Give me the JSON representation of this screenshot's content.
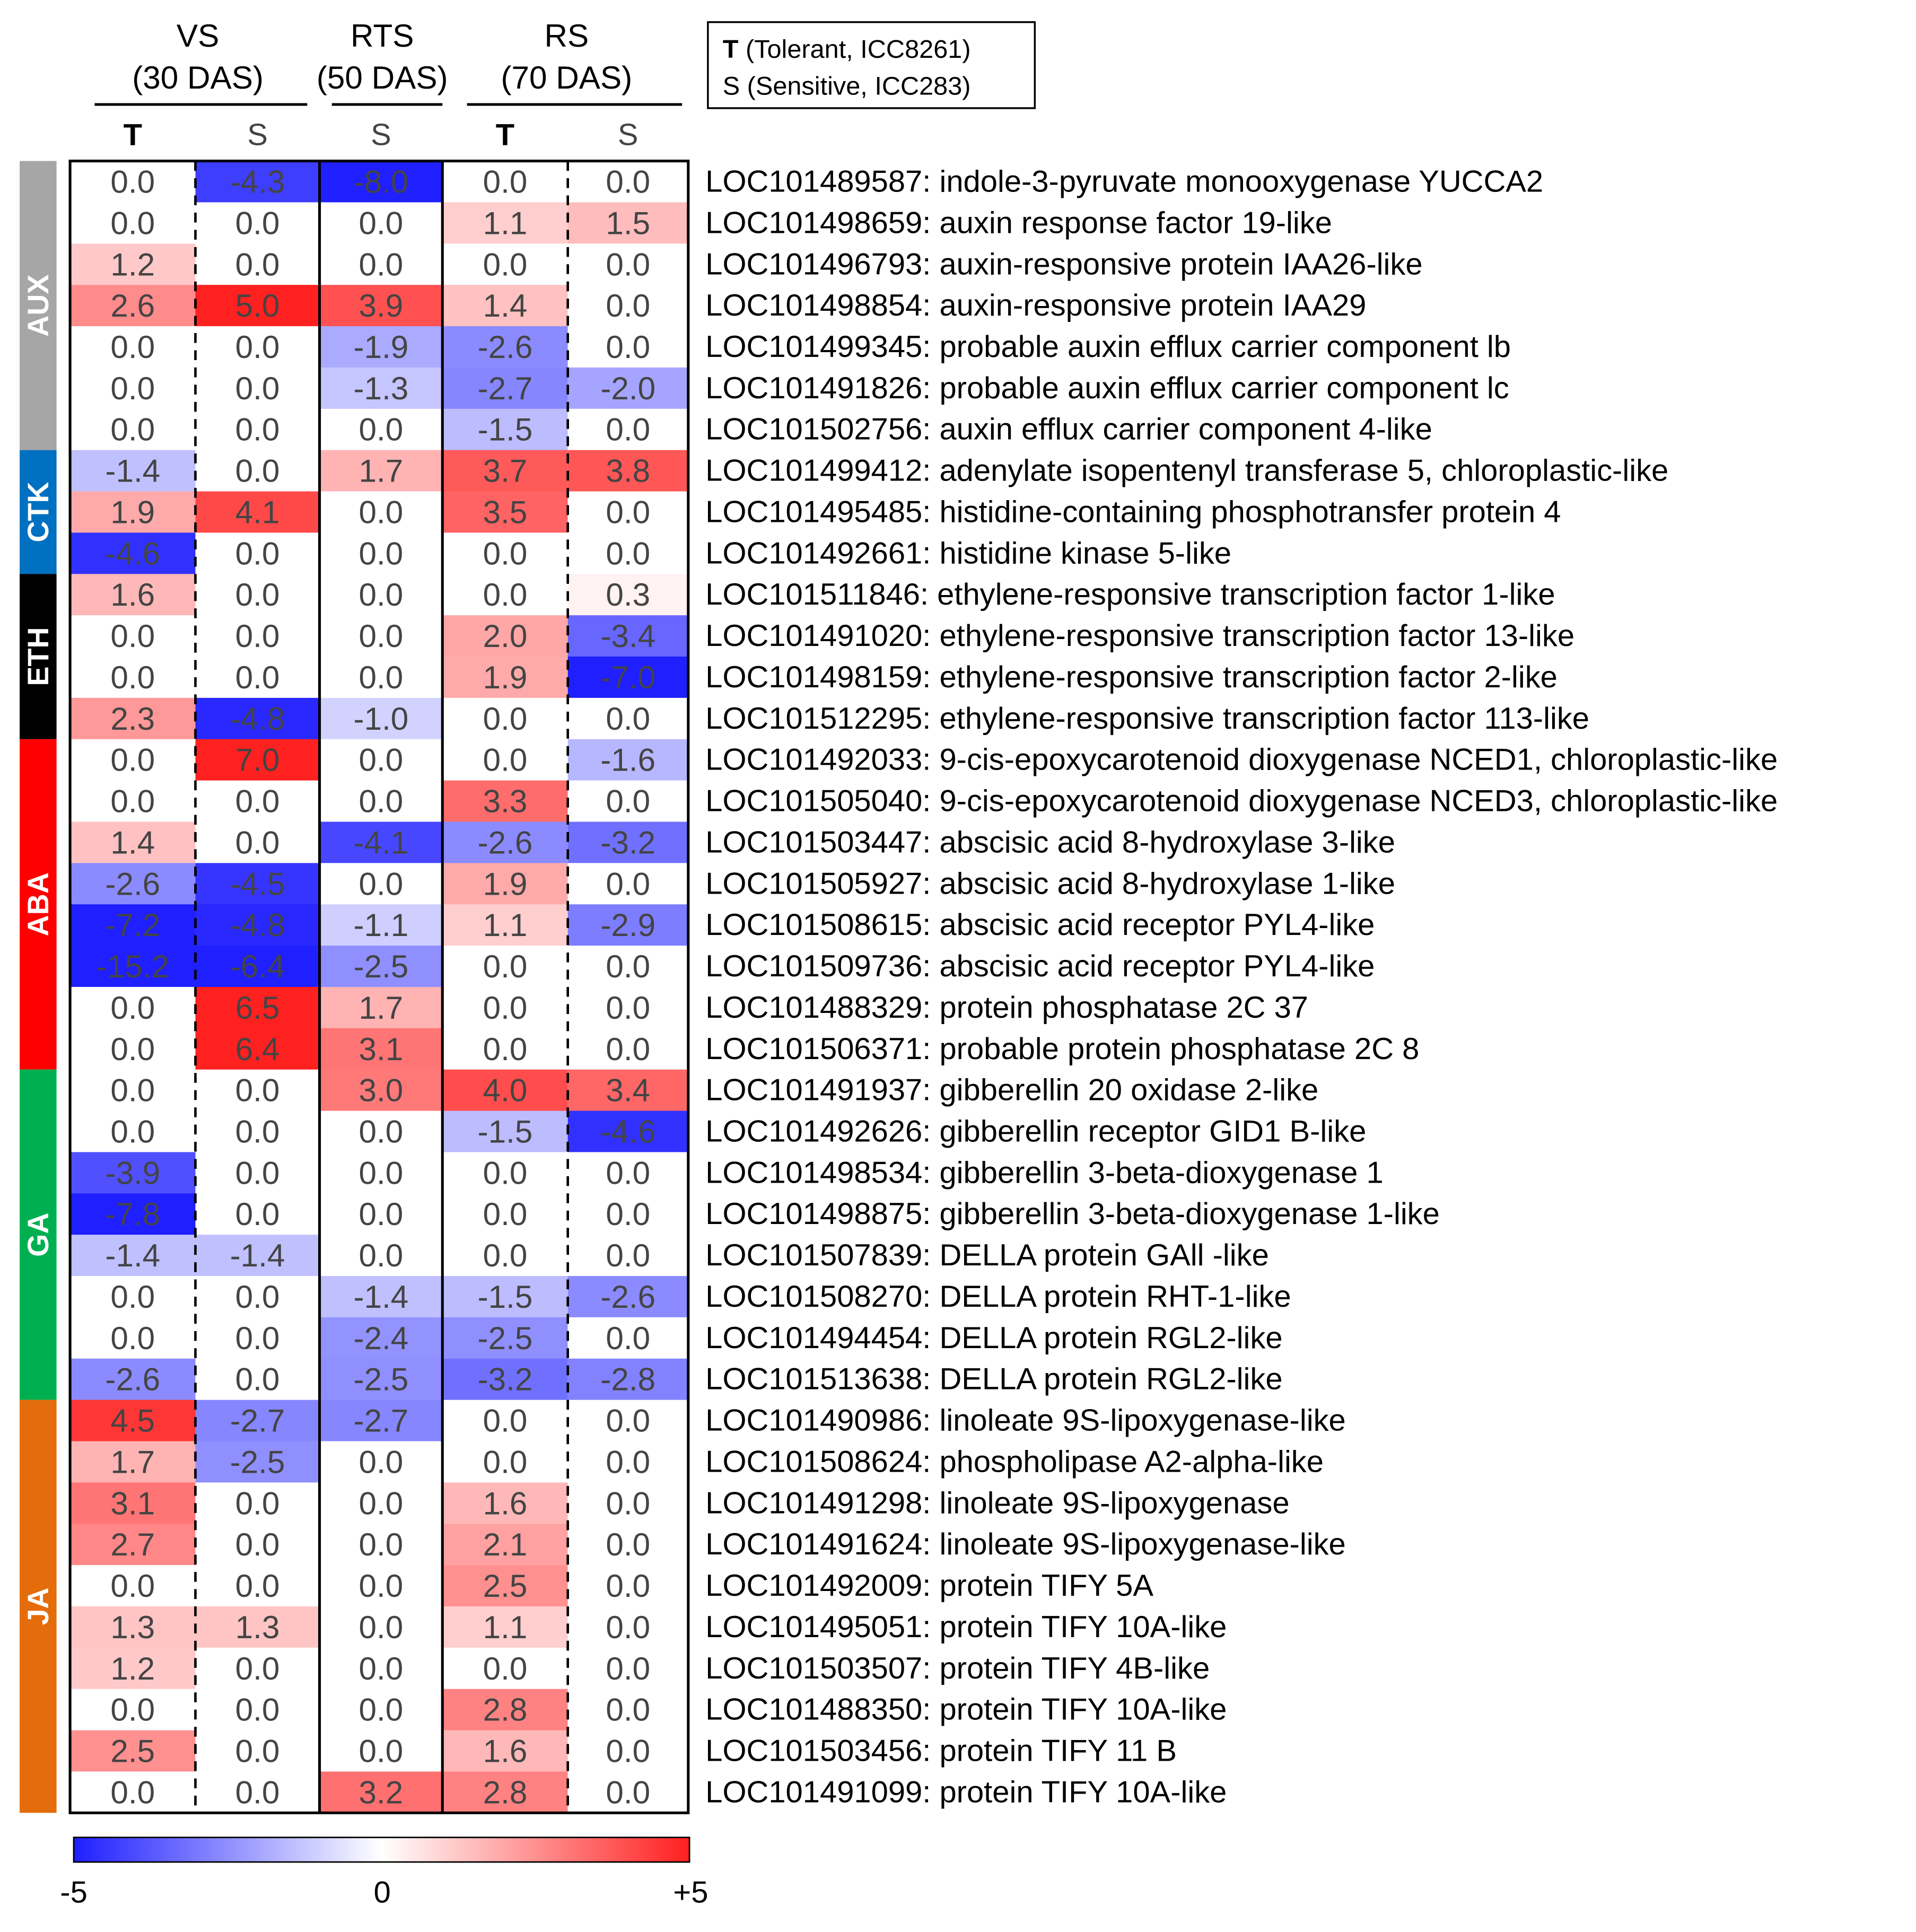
{
  "chart_data": {
    "type": "heatmap",
    "stages": [
      {
        "label_line1": "VS",
        "label_line2": "(30 DAS)"
      },
      {
        "label_line1": "RTS",
        "label_line2": "(50 DAS)"
      },
      {
        "label_line1": "RS",
        "label_line2": "(70 DAS)"
      }
    ],
    "columns": [
      "T",
      "S",
      "S",
      "T",
      "S"
    ],
    "legend": {
      "line1_bold": "T",
      "line1_rest": " (Tolerant, ICC8261)",
      "line2": "S (Sensitive, ICC283)"
    },
    "groups": [
      {
        "name": "AUX",
        "color": "#a6a6a6",
        "rows": 7
      },
      {
        "name": "CTK",
        "color": "#0070c0",
        "rows": 3
      },
      {
        "name": "ETH",
        "color": "#000000",
        "rows": 4
      },
      {
        "name": "ABA",
        "color": "#ff0000",
        "rows": 8
      },
      {
        "name": "GA",
        "color": "#00b050",
        "rows": 8
      },
      {
        "name": "JA",
        "color": "#e46c0a",
        "rows": 10
      }
    ],
    "rows": [
      {
        "label": "LOC101489587: indole-3-pyruvate monooxygenase YUCCA2",
        "values": [
          "0.0",
          "-4.3",
          "-8.0",
          "0.0",
          "0.0"
        ]
      },
      {
        "label": "LOC101498659: auxin response factor 19-like",
        "values": [
          "0.0",
          "0.0",
          "0.0",
          "1.1",
          "1.5"
        ]
      },
      {
        "label": "LOC101496793: auxin-responsive protein IAA26-like",
        "values": [
          "1.2",
          "0.0",
          "0.0",
          "0.0",
          "0.0"
        ]
      },
      {
        "label": "LOC101498854: auxin-responsive protein IAA29",
        "values": [
          "2.6",
          "5.0",
          "3.9",
          "1.4",
          "0.0"
        ]
      },
      {
        "label": "LOC101499345: probable auxin efflux carrier component lb",
        "values": [
          "0.0",
          "0.0",
          "-1.9",
          "-2.6",
          "0.0"
        ]
      },
      {
        "label": "LOC101491826: probable auxin efflux carrier component lc",
        "values": [
          "0.0",
          "0.0",
          "-1.3",
          "-2.7",
          "-2.0"
        ]
      },
      {
        "label": "LOC101502756: auxin efflux carrier component 4-like",
        "values": [
          "0.0",
          "0.0",
          "0.0",
          "-1.5",
          "0.0"
        ]
      },
      {
        "label": "LOC101499412: adenylate isopentenyl transferase 5, chloroplastic-like",
        "values": [
          "-1.4",
          "0.0",
          "1.7",
          "3.7",
          "3.8"
        ]
      },
      {
        "label": "LOC101495485: histidine-containing phosphotransfer protein 4",
        "values": [
          "1.9",
          "4.1",
          "0.0",
          "3.5",
          "0.0"
        ]
      },
      {
        "label": "LOC101492661: histidine kinase 5-like",
        "values": [
          "-4.6",
          "0.0",
          "0.0",
          "0.0",
          "0.0"
        ]
      },
      {
        "label": "LOC101511846: ethylene-responsive transcription factor 1-like",
        "values": [
          "1.6",
          "0.0",
          "0.0",
          "0.0",
          "0.3"
        ]
      },
      {
        "label": "LOC101491020: ethylene-responsive transcription factor 13-like",
        "values": [
          "0.0",
          "0.0",
          "0.0",
          "2.0",
          "-3.4"
        ]
      },
      {
        "label": "LOC101498159: ethylene-responsive transcription factor 2-like",
        "values": [
          "0.0",
          "0.0",
          "0.0",
          "1.9",
          "-7.0"
        ]
      },
      {
        "label": "LOC101512295: ethylene-responsive transcription factor 113-like",
        "values": [
          "2.3",
          "-4.8",
          "-1.0",
          "0.0",
          "0.0"
        ]
      },
      {
        "label": "LOC101492033: 9-cis-epoxycarotenoid dioxygenase NCED1, chloroplastic-like",
        "values": [
          "0.0",
          "7.0",
          "0.0",
          "0.0",
          "-1.6"
        ]
      },
      {
        "label": "LOC101505040: 9-cis-epoxycarotenoid dioxygenase NCED3, chloroplastic-like",
        "values": [
          "0.0",
          "0.0",
          "0.0",
          "3.3",
          "0.0"
        ]
      },
      {
        "label": "LOC101503447: abscisic acid 8-hydroxylase 3-like",
        "values": [
          "1.4",
          "0.0",
          "-4.1",
          "-2.6",
          "-3.2"
        ]
      },
      {
        "label": "LOC101505927: abscisic acid 8-hydroxylase 1-like",
        "values": [
          "-2.6",
          "-4.5",
          "0.0",
          "1.9",
          "0.0"
        ]
      },
      {
        "label": "LOC101508615: abscisic acid receptor PYL4-like",
        "values": [
          "-7.2",
          "-4.8",
          "-1.1",
          "1.1",
          "-2.9"
        ]
      },
      {
        "label": "LOC101509736: abscisic acid receptor PYL4-like",
        "values": [
          "-15.2",
          "-6.4",
          "-2.5",
          "0.0",
          "0.0"
        ]
      },
      {
        "label": "LOC101488329: protein phosphatase 2C 37",
        "values": [
          "0.0",
          "6.5",
          "1.7",
          "0.0",
          "0.0"
        ]
      },
      {
        "label": "LOC101506371: probable protein phosphatase 2C 8",
        "values": [
          "0.0",
          "6.4",
          "3.1",
          "0.0",
          "0.0"
        ]
      },
      {
        "label": "LOC101491937: gibberellin 20 oxidase 2-like",
        "values": [
          "0.0",
          "0.0",
          "3.0",
          "4.0",
          "3.4"
        ]
      },
      {
        "label": "LOC101492626: gibberellin receptor GID1 B-like",
        "values": [
          "0.0",
          "0.0",
          "0.0",
          "-1.5",
          "-4.6"
        ]
      },
      {
        "label": "LOC101498534: gibberellin 3-beta-dioxygenase 1",
        "values": [
          "-3.9",
          "0.0",
          "0.0",
          "0.0",
          "0.0"
        ]
      },
      {
        "label": "LOC101498875: gibberellin 3-beta-dioxygenase 1-like",
        "values": [
          "-7.8",
          "0.0",
          "0.0",
          "0.0",
          "0.0"
        ]
      },
      {
        "label": "LOC101507839: DELLA protein GAll -like",
        "values": [
          "-1.4",
          "-1.4",
          "0.0",
          "0.0",
          "0.0"
        ]
      },
      {
        "label": "LOC101508270: DELLA protein RHT-1-like",
        "values": [
          "0.0",
          "0.0",
          "-1.4",
          "-1.5",
          "-2.6"
        ]
      },
      {
        "label": "LOC101494454: DELLA protein RGL2-like",
        "values": [
          "0.0",
          "0.0",
          "-2.4",
          "-2.5",
          "0.0"
        ]
      },
      {
        "label": "LOC101513638: DELLA protein RGL2-like",
        "values": [
          "-2.6",
          "0.0",
          "-2.5",
          "-3.2",
          "-2.8"
        ]
      },
      {
        "label": "LOC101490986: linoleate 9S-lipoxygenase-like",
        "values": [
          "4.5",
          "-2.7",
          "-2.7",
          "0.0",
          "0.0"
        ]
      },
      {
        "label": "LOC101508624: phospholipase A2-alpha-like",
        "values": [
          "1.7",
          "-2.5",
          "0.0",
          "0.0",
          "0.0"
        ]
      },
      {
        "label": "LOC101491298: linoleate 9S-lipoxygenase",
        "values": [
          "3.1",
          "0.0",
          "0.0",
          "1.6",
          "0.0"
        ]
      },
      {
        "label": "LOC101491624: linoleate 9S-lipoxygenase-like",
        "values": [
          "2.7",
          "0.0",
          "0.0",
          "2.1",
          "0.0"
        ]
      },
      {
        "label": "LOC101492009: protein TIFY 5A",
        "values": [
          "0.0",
          "0.0",
          "0.0",
          "2.5",
          "0.0"
        ]
      },
      {
        "label": "LOC101495051: protein TIFY 10A-like",
        "values": [
          "1.3",
          "1.3",
          "0.0",
          "1.1",
          "0.0"
        ]
      },
      {
        "label": "LOC101503507: protein TIFY 4B-like",
        "values": [
          "1.2",
          "0.0",
          "0.0",
          "0.0",
          "0.0"
        ]
      },
      {
        "label": "LOC101488350: protein TIFY 10A-like",
        "values": [
          "0.0",
          "0.0",
          "0.0",
          "2.8",
          "0.0"
        ]
      },
      {
        "label": "LOC101503456: protein TIFY 11 B",
        "values": [
          "2.5",
          "0.0",
          "0.0",
          "1.6",
          "0.0"
        ]
      },
      {
        "label": "LOC101491099: protein TIFY 10A-like",
        "values": [
          "0.0",
          "0.0",
          "3.2",
          "2.8",
          "0.0"
        ]
      }
    ],
    "colorbar": {
      "min": -5,
      "mid": 0,
      "max": 5,
      "min_label": "-5",
      "mid_label": "0",
      "max_label": "+5",
      "low_color": "#1f1fff",
      "mid_color": "#ffffff",
      "high_color": "#ff2020"
    }
  }
}
